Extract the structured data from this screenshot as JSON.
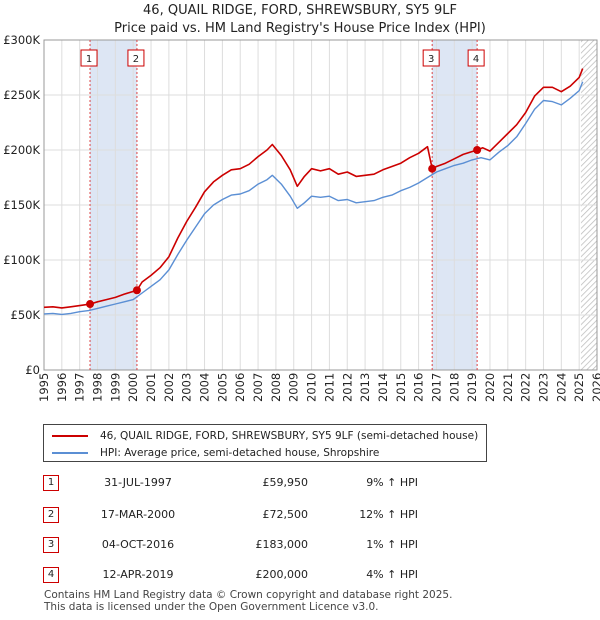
{
  "chart_data": {
    "type": "line",
    "title": "46, QUAIL RIDGE, FORD, SHREWSBURY, SY5 9LF",
    "subtitle": "Price paid vs. HM Land Registry's House Price Index (HPI)",
    "xlim": [
      1995,
      2026
    ],
    "ylim": [
      0,
      300000
    ],
    "x_ticks": [
      "1995",
      "1996",
      "1997",
      "1998",
      "1999",
      "2000",
      "2001",
      "2002",
      "2003",
      "2004",
      "2005",
      "2006",
      "2007",
      "2008",
      "2009",
      "2010",
      "2011",
      "2012",
      "2013",
      "2014",
      "2015",
      "2016",
      "2017",
      "2018",
      "2019",
      "2020",
      "2021",
      "2022",
      "2023",
      "2024",
      "2025",
      "2026"
    ],
    "y_ticks": [
      {
        "value": 0,
        "label": "£0"
      },
      {
        "value": 50000,
        "label": "£50K"
      },
      {
        "value": 100000,
        "label": "£100K"
      },
      {
        "value": 150000,
        "label": "£150K"
      },
      {
        "value": 200000,
        "label": "£200K"
      },
      {
        "value": 250000,
        "label": "£250K"
      },
      {
        "value": 300000,
        "label": "£300K"
      }
    ],
    "grid": true,
    "shaded_periods": [
      [
        1997.58,
        2000.21
      ],
      [
        2016.76,
        2019.28
      ]
    ],
    "forecast_from": 2025.1,
    "series": [
      {
        "name": "46, QUAIL RIDGE, FORD, SHREWSBURY, SY5 9LF (semi-detached house)",
        "color": "#cc0000",
        "x": [
          1995,
          1995.5,
          1996,
          1996.5,
          1997,
          1997.58,
          1998,
          1998.5,
          1999,
          1999.5,
          2000.21,
          2000.5,
          2001,
          2001.5,
          2002,
          2002.5,
          2003,
          2003.5,
          2004,
          2004.5,
          2005,
          2005.5,
          2006,
          2006.5,
          2007,
          2007.5,
          2007.8,
          2008.3,
          2008.8,
          2009.2,
          2009.6,
          2010,
          2010.5,
          2011,
          2011.5,
          2012,
          2012.5,
          2013,
          2013.5,
          2014,
          2014.5,
          2015,
          2015.5,
          2016,
          2016.5,
          2016.76,
          2017,
          2017.5,
          2018,
          2018.5,
          2019.28,
          2019.6,
          2020,
          2020.5,
          2021,
          2021.5,
          2022,
          2022.5,
          2023,
          2023.5,
          2024,
          2024.5,
          2025,
          2025.2
        ],
        "values": [
          57000,
          57500,
          56500,
          57500,
          58500,
          59950,
          62000,
          64000,
          66000,
          69000,
          72500,
          80000,
          86000,
          93000,
          103000,
          120000,
          135000,
          148000,
          162000,
          171000,
          177000,
          182000,
          183000,
          187000,
          194000,
          200000,
          205000,
          195000,
          182000,
          167000,
          176000,
          183000,
          181000,
          183000,
          178000,
          180000,
          176000,
          177000,
          178000,
          182000,
          185000,
          188000,
          193000,
          197000,
          203000,
          183000,
          185000,
          188000,
          192000,
          196000,
          200000,
          202000,
          199000,
          207000,
          215000,
          223000,
          234000,
          249000,
          257000,
          257000,
          253000,
          258000,
          266000,
          274000
        ]
      },
      {
        "name": "HPI: Average price, semi-detached house, Shropshire",
        "color": "#5b8fd4",
        "x": [
          1995,
          1995.5,
          1996,
          1996.5,
          1997,
          1997.5,
          1998,
          1998.5,
          1999,
          1999.5,
          2000,
          2000.5,
          2001,
          2001.5,
          2002,
          2002.5,
          2003,
          2003.5,
          2004,
          2004.5,
          2005,
          2005.5,
          2006,
          2006.5,
          2007,
          2007.5,
          2007.8,
          2008.3,
          2008.8,
          2009.2,
          2009.6,
          2010,
          2010.5,
          2011,
          2011.5,
          2012,
          2012.5,
          2013,
          2013.5,
          2014,
          2014.5,
          2015,
          2015.5,
          2016,
          2016.5,
          2017,
          2017.5,
          2018,
          2018.5,
          2019,
          2019.5,
          2020,
          2020.5,
          2021,
          2021.5,
          2022,
          2022.5,
          2023,
          2023.5,
          2024,
          2024.5,
          2025,
          2025.2
        ],
        "values": [
          51000,
          51500,
          50500,
          51500,
          53000,
          54000,
          56000,
          58000,
          60000,
          62000,
          64000,
          70000,
          76000,
          82000,
          91000,
          105000,
          118000,
          130000,
          142000,
          150000,
          155000,
          159000,
          160000,
          163000,
          169000,
          173000,
          177000,
          169000,
          158000,
          147000,
          152000,
          158000,
          157000,
          158000,
          154000,
          155000,
          152000,
          153000,
          154000,
          157000,
          159000,
          163000,
          166000,
          170000,
          175000,
          180000,
          183000,
          186000,
          188000,
          191000,
          193000,
          191000,
          198000,
          204000,
          212000,
          224000,
          237000,
          245000,
          244000,
          241000,
          247000,
          254000,
          262000
        ]
      }
    ],
    "markers": [
      {
        "label": "1",
        "x": 1997.58,
        "value": 59950
      },
      {
        "label": "2",
        "x": 2000.21,
        "value": 72500
      },
      {
        "label": "3",
        "x": 2016.76,
        "value": 183000
      },
      {
        "label": "4",
        "x": 2019.28,
        "value": 200000
      }
    ]
  },
  "legend": {
    "property_label": "46, QUAIL RIDGE, FORD, SHREWSBURY, SY5 9LF (semi-detached house)",
    "hpi_label": "HPI: Average price, semi-detached house, Shropshire"
  },
  "transactions": [
    {
      "num": "1",
      "date": "31-JUL-1997",
      "price": "£59,950",
      "hpi": "9% ↑ HPI"
    },
    {
      "num": "2",
      "date": "17-MAR-2000",
      "price": "£72,500",
      "hpi": "12% ↑ HPI"
    },
    {
      "num": "3",
      "date": "04-OCT-2016",
      "price": "£183,000",
      "hpi": "1% ↑ HPI"
    },
    {
      "num": "4",
      "date": "12-APR-2019",
      "price": "£200,000",
      "hpi": "4% ↑ HPI"
    }
  ],
  "footer": {
    "line1": "Contains HM Land Registry data © Crown copyright and database right 2025.",
    "line2": "This data is licensed under the Open Government Licence v3.0."
  },
  "colors": {
    "property": "#cc0000",
    "hpi": "#5b8fd4",
    "shade": "#dde6f4",
    "grid": "#dddddd"
  }
}
